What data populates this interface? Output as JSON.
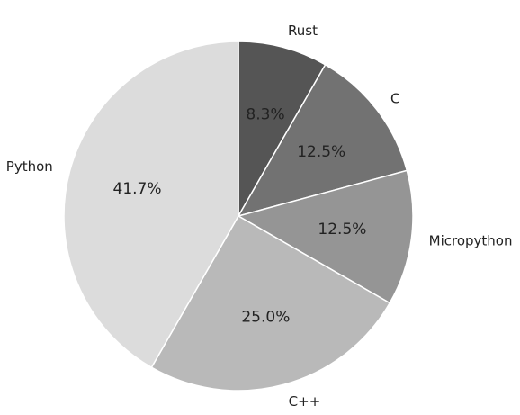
{
  "chart_data": {
    "type": "pie",
    "categories": [
      "Rust",
      "C",
      "Micropython",
      "C++",
      "Python"
    ],
    "values": [
      8.3,
      12.5,
      12.5,
      25.0,
      41.7
    ],
    "value_labels": [
      "8.3%",
      "12.5%",
      "12.5%",
      "25.0%",
      "41.7%"
    ],
    "colors": [
      "#555555",
      "#727272",
      "#959595",
      "#b9b9b9",
      "#dcdcdc"
    ],
    "start_angle": "top",
    "direction": "clockwise",
    "legend": "none"
  }
}
